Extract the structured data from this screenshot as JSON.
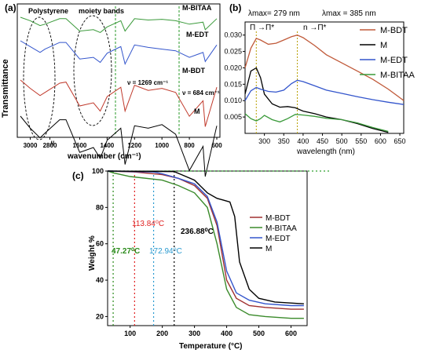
{
  "panels": {
    "a": {
      "label": "(a)",
      "ylabel": "Transmittance",
      "xlabel": "wavenumber (cm⁻¹)",
      "xticks": [
        "3000",
        "2800",
        "1600",
        "1400",
        "1200",
        "1000",
        "800",
        "600"
      ],
      "annotation_poly": "Polystyrene",
      "annotation_moiety": "moiety bands",
      "band1": "ν = 1269 cm⁻¹",
      "band2": "ν = 684 cm⁻¹",
      "break_mark": "//",
      "series": [
        {
          "name": "M-BITAA",
          "color": "#3a9a3a"
        },
        {
          "name": "M-EDT",
          "color": "#3355cc"
        },
        {
          "name": "M-BDT",
          "color": "#c0392b"
        },
        {
          "name": "M",
          "color": "#000000"
        }
      ]
    },
    "b": {
      "label": "(b)",
      "xlabel": "wavelength (nm)",
      "xticks": [
        "300",
        "350",
        "400",
        "450",
        "500",
        "550",
        "600",
        "650"
      ],
      "yticks": [
        "0.005",
        "0.010",
        "0.015",
        "0.020",
        "0.025",
        "0.030"
      ],
      "lambda1": "λmax= 279 nm",
      "lambda2": "λmax = 385 nm",
      "trans1": "Π →Π*",
      "trans2": "n →Π*",
      "legend": [
        {
          "name": "M-BDT",
          "color": "#c05a3a"
        },
        {
          "name": "M",
          "color": "#000000"
        },
        {
          "name": "M-EDT",
          "color": "#3355cc"
        },
        {
          "name": "M-BITAA",
          "color": "#3a9a3a"
        }
      ]
    },
    "c": {
      "label": "(c)",
      "xlabel": "Temperature (°C)",
      "ylabel": "Weight %",
      "xticks": [
        "100",
        "200",
        "300",
        "400",
        "500",
        "600"
      ],
      "yticks": [
        "20",
        "40",
        "60",
        "80",
        "100"
      ],
      "ann_bdt": "113.84⁰C",
      "ann_m": "236.88⁰C",
      "ann_bitaa": "47.27⁰C",
      "ann_edt": "172.94⁰C",
      "legend": [
        {
          "name": "M-BDT",
          "color": "#a03030"
        },
        {
          "name": "M-BITAA",
          "color": "#3a8a2a"
        },
        {
          "name": "M-EDT",
          "color": "#3355cc"
        },
        {
          "name": "M",
          "color": "#000000"
        }
      ]
    }
  },
  "chart_data": [
    {
      "type": "line",
      "title": "(a)",
      "xlabel": "wavenumber (cm⁻¹)",
      "ylabel": "Transmittance",
      "x_reversed": true,
      "series": [
        {
          "name": "M-BITAA",
          "x": [
            3100,
            3000,
            2900,
            2850,
            2700,
            1700,
            1600,
            1500,
            1450,
            1400,
            1300,
            1269,
            1200,
            1100,
            1000,
            900,
            800,
            700,
            684,
            600
          ],
          "y": [
            1.0,
            0.95,
            0.88,
            0.9,
            0.98,
            0.98,
            0.8,
            0.82,
            0.78,
            0.86,
            0.95,
            0.8,
            0.98,
            0.96,
            0.97,
            0.95,
            0.9,
            0.93,
            0.82,
            0.98
          ]
        },
        {
          "name": "M-EDT",
          "x": [
            3100,
            3000,
            2900,
            2850,
            2700,
            1700,
            1600,
            1500,
            1450,
            1400,
            1300,
            1269,
            1200,
            1100,
            1000,
            900,
            800,
            700,
            684,
            600
          ],
          "y": [
            1.0,
            0.93,
            0.86,
            0.9,
            0.98,
            0.98,
            0.78,
            0.8,
            0.74,
            0.85,
            0.93,
            0.72,
            0.95,
            0.92,
            0.9,
            0.88,
            0.8,
            0.86,
            0.75,
            0.95
          ]
        },
        {
          "name": "M-BDT",
          "x": [
            3100,
            3000,
            2900,
            2850,
            2700,
            1700,
            1600,
            1500,
            1450,
            1400,
            1300,
            1269,
            1200,
            1100,
            1000,
            900,
            800,
            700,
            684,
            600
          ],
          "y": [
            1.0,
            0.92,
            0.85,
            0.88,
            0.97,
            0.98,
            0.75,
            0.78,
            0.7,
            0.84,
            0.93,
            0.7,
            0.95,
            0.9,
            0.92,
            0.88,
            0.65,
            0.8,
            0.55,
            0.93
          ]
        },
        {
          "name": "M",
          "x": [
            3100,
            3000,
            2900,
            2850,
            2700,
            1700,
            1600,
            1500,
            1450,
            1400,
            1300,
            1269,
            1200,
            1100,
            1000,
            900,
            800,
            700,
            684,
            600
          ],
          "y": [
            1.0,
            0.9,
            0.82,
            0.86,
            0.97,
            0.97,
            0.7,
            0.74,
            0.65,
            0.8,
            0.9,
            0.6,
            0.92,
            0.9,
            0.93,
            0.85,
            0.55,
            0.75,
            0.5,
            0.92
          ]
        }
      ]
    },
    {
      "type": "line",
      "title": "(b)",
      "xlabel": "wavelength (nm)",
      "ylabel": "",
      "xlim": [
        250,
        660
      ],
      "ylim": [
        0.0,
        0.034
      ],
      "series": [
        {
          "name": "M-BDT",
          "x": [
            250,
            265,
            279,
            290,
            310,
            330,
            350,
            370,
            385,
            400,
            430,
            460,
            500,
            540,
            580,
            620,
            660
          ],
          "y": [
            0.02,
            0.026,
            0.029,
            0.0285,
            0.0272,
            0.0275,
            0.0285,
            0.0295,
            0.03,
            0.0292,
            0.0268,
            0.024,
            0.0215,
            0.019,
            0.0165,
            0.0135,
            0.01
          ]
        },
        {
          "name": "M",
          "x": [
            250,
            265,
            279,
            290,
            300,
            320,
            340,
            360,
            380,
            400,
            430,
            460,
            500,
            540,
            580,
            620
          ],
          "y": [
            0.012,
            0.019,
            0.02,
            0.017,
            0.012,
            0.009,
            0.008,
            0.0082,
            0.0078,
            0.0068,
            0.006,
            0.005,
            0.0042,
            0.003,
            0.0015,
            0.0003
          ]
        },
        {
          "name": "M-EDT",
          "x": [
            250,
            265,
            279,
            290,
            310,
            330,
            350,
            370,
            385,
            400,
            430,
            460,
            500,
            540,
            580,
            620,
            660
          ],
          "y": [
            0.01,
            0.013,
            0.014,
            0.0135,
            0.0128,
            0.0126,
            0.0132,
            0.0152,
            0.0162,
            0.0158,
            0.0145,
            0.0132,
            0.0122,
            0.0112,
            0.0103,
            0.0095,
            0.0088
          ]
        },
        {
          "name": "M-BITAA",
          "x": [
            250,
            265,
            279,
            290,
            300,
            320,
            340,
            360,
            380,
            400,
            430,
            460,
            500,
            540,
            580,
            620
          ],
          "y": [
            0.006,
            0.0045,
            0.0038,
            0.0045,
            0.0055,
            0.0042,
            0.0035,
            0.0045,
            0.0058,
            0.0056,
            0.0052,
            0.0046,
            0.0042,
            0.0032,
            0.0018,
            0.0006
          ]
        }
      ]
    },
    {
      "type": "line",
      "title": "(c)",
      "xlabel": "Temperature (°C)",
      "ylabel": "Weight %",
      "xlim": [
        30,
        650
      ],
      "ylim": [
        15,
        100
      ],
      "series": [
        {
          "name": "M-BDT",
          "x": [
            30,
            113.84,
            200,
            250,
            300,
            340,
            370,
            400,
            430,
            470,
            520,
            600,
            640
          ],
          "y": [
            100,
            99.5,
            98,
            96,
            92,
            85,
            70,
            40,
            30,
            26,
            25,
            24,
            24
          ]
        },
        {
          "name": "M-BITAA",
          "x": [
            30,
            47.27,
            100,
            200,
            250,
            300,
            340,
            370,
            400,
            430,
            470,
            520,
            600,
            640
          ],
          "y": [
            100,
            99,
            97,
            95,
            92,
            88,
            80,
            60,
            35,
            25,
            21,
            20,
            19,
            19
          ]
        },
        {
          "name": "M-EDT",
          "x": [
            30,
            172.94,
            200,
            250,
            300,
            340,
            370,
            400,
            430,
            470,
            520,
            600,
            640
          ],
          "y": [
            100,
            99.5,
            98.5,
            96,
            93,
            86,
            72,
            45,
            33,
            29,
            27,
            26,
            26
          ]
        },
        {
          "name": "M",
          "x": [
            30,
            236.88,
            260,
            300,
            340,
            370,
            390,
            410,
            425,
            440,
            470,
            500,
            550,
            640
          ],
          "y": [
            100,
            99.7,
            98,
            95,
            88,
            85,
            84,
            83,
            75,
            50,
            35,
            30,
            28,
            27
          ]
        }
      ]
    }
  ]
}
